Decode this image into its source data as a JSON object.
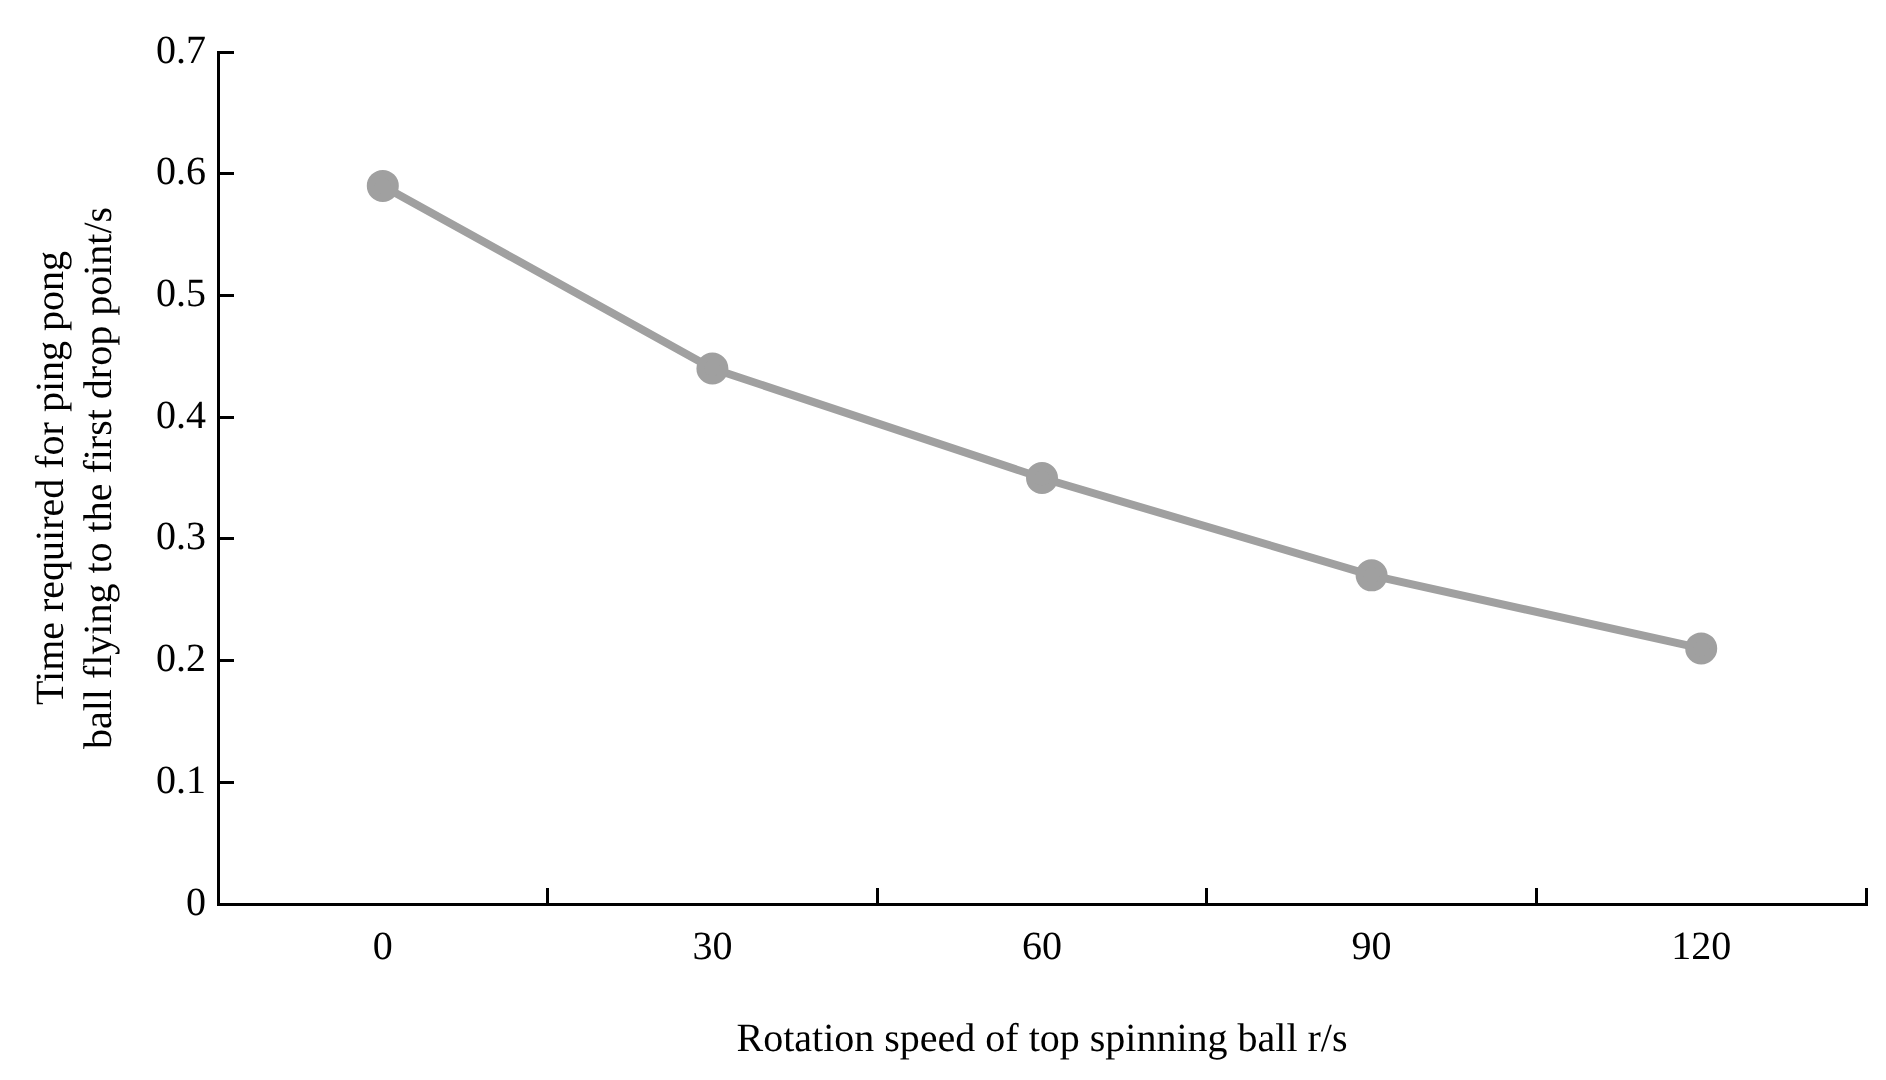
{
  "chart_data": {
    "type": "line",
    "xlabel": "Rotation speed of top spinning ball r/s",
    "ylabel": "Time required for ping pong\nball flying to the first drop point/s",
    "categories": [
      "0",
      "30",
      "60",
      "90",
      "120"
    ],
    "series": [
      {
        "color": "#a0a0a0",
        "values": [
          0.59,
          0.44,
          0.35,
          0.27,
          0.21
        ]
      }
    ],
    "ylim": [
      0,
      0.7
    ],
    "yticks": [
      0,
      0.1,
      0.2,
      0.3,
      0.4,
      0.5,
      0.6,
      0.7
    ],
    "grid": false,
    "legend": false,
    "marker": "circle",
    "line_style": "solid"
  }
}
